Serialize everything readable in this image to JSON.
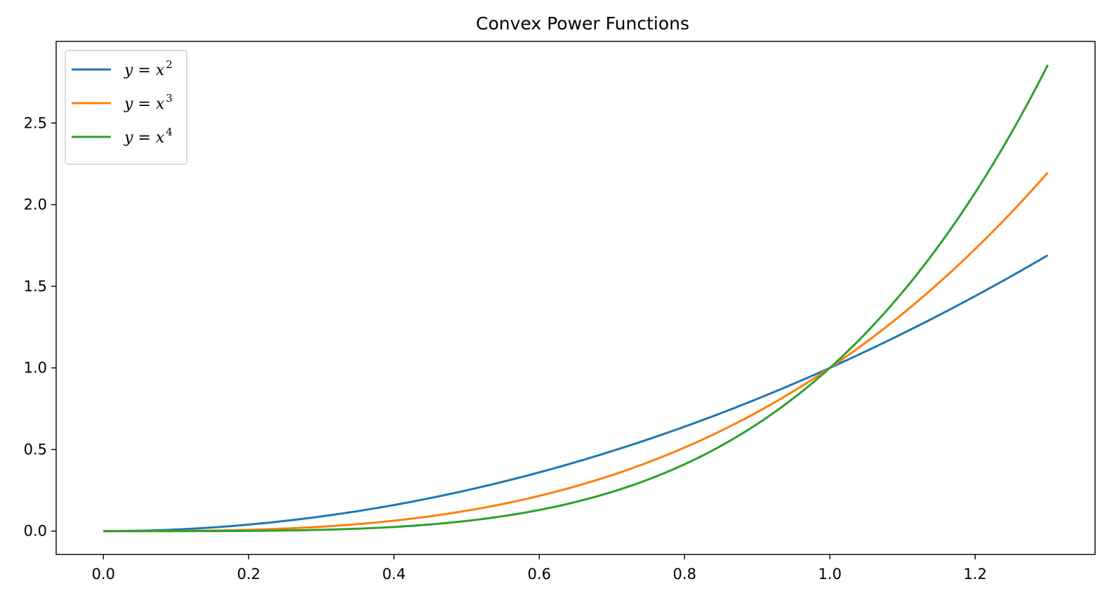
{
  "chart_data": {
    "type": "line",
    "title": "Convex Power Functions",
    "xlabel": "",
    "ylabel": "",
    "xlim": [
      -0.065,
      1.365
    ],
    "ylim": [
      -0.143,
      3.0
    ],
    "x_ticks": [
      {
        "value": 0.0,
        "label": "0.0"
      },
      {
        "value": 0.2,
        "label": "0.2"
      },
      {
        "value": 0.4,
        "label": "0.4"
      },
      {
        "value": 0.6,
        "label": "0.6"
      },
      {
        "value": 0.8,
        "label": "0.8"
      },
      {
        "value": 1.0,
        "label": "1.0"
      },
      {
        "value": 1.2,
        "label": "1.2"
      }
    ],
    "y_ticks": [
      {
        "value": 0.0,
        "label": "0.0"
      },
      {
        "value": 0.5,
        "label": "0.5"
      },
      {
        "value": 1.0,
        "label": "1.0"
      },
      {
        "value": 1.5,
        "label": "1.5"
      },
      {
        "value": 2.0,
        "label": "2.0"
      },
      {
        "value": 2.5,
        "label": "2.5"
      }
    ],
    "grid": false,
    "legend_position": "upper-left",
    "x_domain": [
      0.0,
      1.3
    ],
    "series": [
      {
        "name_base": "y = x",
        "name_exp": "2",
        "exponent": 2,
        "color": "#1f77b4"
      },
      {
        "name_base": "y = x",
        "name_exp": "3",
        "exponent": 3,
        "color": "#ff7f0e"
      },
      {
        "name_base": "y = x",
        "name_exp": "4",
        "exponent": 4,
        "color": "#2ca02c"
      }
    ]
  }
}
